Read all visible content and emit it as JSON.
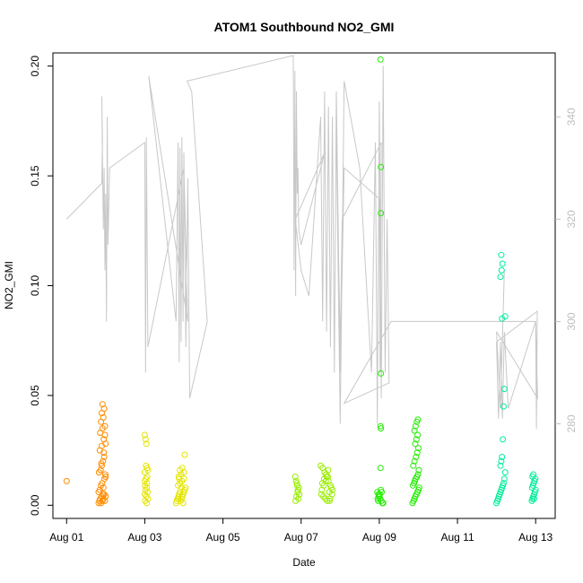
{
  "chart_data": {
    "type": "scatter",
    "title": "ATOM1 Southbound NO2_GMI",
    "xlabel": "Date",
    "ylabel": "NO2_GMI",
    "x_unit": "days since Aug 01",
    "xlim": [
      -0.35,
      12.5
    ],
    "ylim": [
      -0.006,
      0.206
    ],
    "x_ticks": [
      {
        "value": 0,
        "label": "Aug 01"
      },
      {
        "value": 2,
        "label": "Aug 03"
      },
      {
        "value": 4,
        "label": "Aug 05"
      },
      {
        "value": 6,
        "label": "Aug 07"
      },
      {
        "value": 8,
        "label": "Aug 09"
      },
      {
        "value": 10,
        "label": "Aug 11"
      },
      {
        "value": 12,
        "label": "Aug 13"
      }
    ],
    "y_ticks": [
      {
        "value": 0.0,
        "label": "0.00"
      },
      {
        "value": 0.05,
        "label": "0.05"
      },
      {
        "value": 0.1,
        "label": "0.10"
      },
      {
        "value": 0.15,
        "label": "0.15"
      },
      {
        "value": 0.2,
        "label": "0.20"
      }
    ],
    "secondary_axis": {
      "side": "right",
      "color": "#bebebe",
      "ylim": [
        261.5,
        352.5
      ],
      "ticks": [
        {
          "value": 280,
          "label": "280"
        },
        {
          "value": 300,
          "label": "300"
        },
        {
          "value": 320,
          "label": "320"
        },
        {
          "value": 340,
          "label": "340"
        }
      ]
    },
    "trace": {
      "color": "#c8c8c8",
      "axis": "secondary",
      "x": [
        0.0,
        0.9,
        0.92,
        0.9,
        0.94,
        0.96,
        0.98,
        1.0,
        1.02,
        1.04,
        1.06,
        1.1,
        2.0,
        2.02,
        2.04,
        2.08,
        3.0,
        3.1,
        2.1,
        2.8,
        2.85,
        2.88,
        2.9,
        2.93,
        2.95,
        2.98,
        3.0,
        3.05,
        3.1,
        3.15,
        3.6,
        3.2,
        3.08,
        5.8,
        5.82,
        5.84,
        5.86,
        5.88,
        5.9,
        5.92,
        5.94,
        6.0,
        6.6,
        5.85,
        6.0,
        6.2,
        6.5,
        6.55,
        6.6,
        6.65,
        6.7,
        6.75,
        6.8,
        6.85,
        6.9,
        7.0,
        7.1,
        8.0,
        8.02,
        8.05,
        7.05,
        7.0,
        6.9,
        7.0,
        7.1,
        7.5,
        7.8,
        7.9,
        7.95,
        8.0,
        8.05,
        8.1,
        8.15,
        8.2,
        8.25,
        7.1,
        8.3,
        12.0,
        12.02,
        12.04,
        11.0,
        11.05,
        11.1,
        11.15,
        11.2,
        11.3,
        12.0,
        12.05,
        11.0,
        11.1,
        11.2
      ],
      "y": [
        320,
        327,
        335,
        344,
        318,
        330,
        310,
        325,
        300,
        340,
        315,
        330,
        335,
        290,
        336,
        295,
        330,
        300,
        348,
        300,
        335,
        292,
        334,
        296,
        336,
        300,
        333,
        295,
        328,
        285,
        300,
        345,
        347,
        352,
        310,
        349,
        305,
        345,
        325,
        330,
        318,
        315,
        333,
        320,
        310,
        305,
        340,
        300,
        345,
        298,
        342,
        295,
        340,
        290,
        345,
        290,
        330,
        324,
        290,
        335,
        320,
        295,
        337,
        280,
        347,
        330,
        290,
        335,
        280,
        343,
        285,
        350,
        290,
        320,
        288,
        284,
        300,
        300,
        279,
        302,
        296,
        281,
        296,
        281,
        298,
        283,
        300,
        285,
        298,
        283,
        310
      ]
    },
    "series": [
      {
        "name": "",
        "color": "#ff8c00",
        "x": [
          0.0,
          0.82,
          0.84,
          0.86,
          0.88,
          0.9,
          0.92,
          0.94,
          0.96,
          0.98,
          1.0,
          0.82,
          0.85,
          0.88,
          0.91,
          0.94,
          0.97,
          1.0,
          0.83,
          0.87,
          0.9,
          0.93,
          0.96,
          0.99,
          0.85,
          0.9,
          0.95,
          1.0,
          0.86,
          0.92,
          0.98,
          0.88,
          0.94,
          0.9,
          0.96,
          0.92,
          0.98,
          0.95,
          0.89,
          0.93
        ],
        "y": [
          0.011,
          0.001,
          0.002,
          0.003,
          0.001,
          0.004,
          0.002,
          0.003,
          0.005,
          0.002,
          0.004,
          0.006,
          0.007,
          0.009,
          0.01,
          0.008,
          0.012,
          0.013,
          0.015,
          0.016,
          0.018,
          0.02,
          0.022,
          0.014,
          0.025,
          0.027,
          0.03,
          0.028,
          0.033,
          0.035,
          0.032,
          0.038,
          0.04,
          0.042,
          0.044,
          0.046,
          0.036,
          0.024,
          0.019,
          0.005
        ]
      },
      {
        "name": "",
        "color": "#e5e500",
        "x": [
          2.0,
          2.02,
          2.04,
          2.06,
          2.08,
          2.0,
          2.03,
          2.06,
          2.01,
          2.05,
          2.02,
          2.07,
          2.0,
          2.04,
          2.08,
          2.01,
          2.05,
          2.0,
          2.06,
          2.03,
          2.8,
          2.82,
          2.84,
          2.86,
          2.88,
          2.9,
          2.92,
          2.94,
          2.96,
          2.98,
          3.0,
          3.02,
          3.04,
          2.85,
          2.9,
          2.95,
          3.0,
          2.87,
          2.93,
          3.0,
          2.9,
          2.96,
          2.88,
          3.02,
          2.94,
          2.86,
          2.98
        ],
        "y": [
          0.032,
          0.03,
          0.028,
          0.017,
          0.016,
          0.015,
          0.012,
          0.01,
          0.009,
          0.008,
          0.007,
          0.006,
          0.005,
          0.004,
          0.003,
          0.002,
          0.001,
          0.011,
          0.013,
          0.018,
          0.001,
          0.002,
          0.003,
          0.004,
          0.005,
          0.006,
          0.002,
          0.003,
          0.004,
          0.005,
          0.006,
          0.007,
          0.008,
          0.009,
          0.01,
          0.011,
          0.012,
          0.013,
          0.014,
          0.015,
          0.016,
          0.017,
          0.012,
          0.023,
          0.008,
          0.003,
          0.001
        ]
      },
      {
        "name": "",
        "color": "#99ee00",
        "x": [
          5.85,
          5.87,
          5.9,
          5.92,
          5.95,
          5.88,
          5.93,
          5.86,
          5.91,
          5.94,
          5.89,
          6.5,
          6.55,
          6.6,
          6.65,
          6.7,
          6.75,
          6.8,
          6.52,
          6.57,
          6.62,
          6.67,
          6.72,
          6.77,
          6.54,
          6.59,
          6.64,
          6.69,
          6.74,
          6.79,
          6.53,
          6.58,
          6.63,
          6.68,
          6.73
        ],
        "y": [
          0.013,
          0.011,
          0.009,
          0.007,
          0.005,
          0.004,
          0.003,
          0.002,
          0.006,
          0.008,
          0.01,
          0.018,
          0.017,
          0.015,
          0.013,
          0.011,
          0.009,
          0.007,
          0.005,
          0.004,
          0.003,
          0.002,
          0.006,
          0.008,
          0.01,
          0.012,
          0.014,
          0.016,
          0.003,
          0.005,
          0.007,
          0.009,
          0.011,
          0.013,
          0.002
        ]
      },
      {
        "name": "",
        "color": "#22ee00",
        "x": [
          8.03,
          8.04,
          8.04,
          8.04,
          8.03,
          8.04,
          8.03,
          8.04,
          7.95,
          7.98,
          8.0,
          8.02,
          8.05,
          8.08,
          7.96,
          7.99,
          8.01,
          8.06,
          7.97,
          8.1,
          8.85,
          8.88,
          8.9,
          8.92,
          8.95,
          8.98,
          9.0,
          9.02,
          8.86,
          8.89,
          8.91,
          8.93,
          8.96,
          8.99,
          9.01,
          8.87,
          8.9,
          8.94,
          8.97,
          9.0,
          8.92,
          8.95,
          8.98,
          8.9,
          8.93,
          8.96,
          8.99
        ],
        "y": [
          0.203,
          0.154,
          0.133,
          0.06,
          0.036,
          0.035,
          0.017,
          0.007,
          0.006,
          0.005,
          0.004,
          0.003,
          0.002,
          0.001,
          0.003,
          0.004,
          0.005,
          0.006,
          0.002,
          0.001,
          0.001,
          0.002,
          0.003,
          0.004,
          0.005,
          0.006,
          0.007,
          0.008,
          0.009,
          0.01,
          0.011,
          0.012,
          0.013,
          0.014,
          0.016,
          0.018,
          0.02,
          0.022,
          0.024,
          0.026,
          0.028,
          0.03,
          0.032,
          0.034,
          0.036,
          0.038,
          0.039
        ]
      },
      {
        "name": "",
        "color": "#00ee99",
        "x": [
          11.0,
          11.02,
          11.04,
          11.06,
          11.08,
          11.1,
          11.12,
          11.14,
          11.16,
          11.18,
          11.2,
          11.22,
          11.1,
          11.12,
          11.14,
          11.16,
          11.18,
          11.2,
          11.22,
          11.1,
          11.13,
          11.15,
          11.12,
          11.14,
          11.9,
          11.92,
          11.94,
          11.96,
          11.98,
          12.0,
          11.91,
          11.93,
          11.95,
          11.97,
          11.99,
          11.92,
          11.94,
          11.96
        ],
        "y": [
          0.001,
          0.002,
          0.003,
          0.004,
          0.005,
          0.006,
          0.007,
          0.008,
          0.009,
          0.01,
          0.012,
          0.015,
          0.018,
          0.02,
          0.022,
          0.03,
          0.045,
          0.053,
          0.086,
          0.104,
          0.107,
          0.11,
          0.114,
          0.085,
          0.002,
          0.003,
          0.004,
          0.005,
          0.006,
          0.007,
          0.008,
          0.009,
          0.01,
          0.011,
          0.012,
          0.013,
          0.014,
          0.003
        ]
      }
    ]
  }
}
